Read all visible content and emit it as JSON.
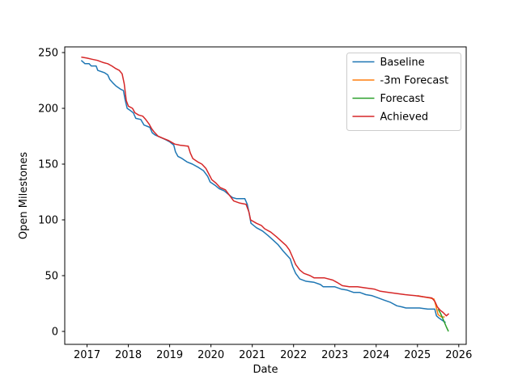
{
  "figure": {
    "background": "#ffffff",
    "kind": "matplotlib-line-chart"
  },
  "chart_data": {
    "type": "line",
    "title": "",
    "xlabel": "Date",
    "ylabel": "Open Milestones",
    "xlim": [
      2016.46,
      2026.18
    ],
    "ylim": [
      -11.6,
      255.1
    ],
    "xticks": [
      2017,
      2018,
      2019,
      2020,
      2021,
      2022,
      2023,
      2024,
      2025,
      2026
    ],
    "yticks": [
      0,
      50,
      100,
      150,
      200,
      250
    ],
    "grid": false,
    "legend": {
      "position": "upper-right",
      "entries": [
        "Baseline",
        "-3m Forecast",
        "Forecast",
        "Achieved"
      ],
      "border_color": "#cccccc",
      "background": "#ffffff"
    },
    "series": [
      {
        "name": "Baseline",
        "color": "#1f77b4",
        "x": [
          2016.86,
          2016.95,
          2017.05,
          2017.1,
          2017.22,
          2017.26,
          2017.42,
          2017.5,
          2017.55,
          2017.62,
          2017.7,
          2017.82,
          2017.88,
          2017.92,
          2017.97,
          2018.05,
          2018.12,
          2018.18,
          2018.3,
          2018.38,
          2018.52,
          2018.58,
          2018.65,
          2018.78,
          2018.9,
          2019.0,
          2019.1,
          2019.14,
          2019.2,
          2019.3,
          2019.42,
          2019.55,
          2019.7,
          2019.82,
          2019.92,
          2019.98,
          2020.1,
          2020.2,
          2020.32,
          2020.42,
          2020.52,
          2020.62,
          2020.82,
          2020.88,
          2020.93,
          2020.97,
          2021.1,
          2021.25,
          2021.38,
          2021.5,
          2021.62,
          2021.75,
          2021.85,
          2021.92,
          2021.98,
          2022.05,
          2022.15,
          2022.3,
          2022.5,
          2022.65,
          2022.72,
          2023.0,
          2023.15,
          2023.3,
          2023.45,
          2023.6,
          2023.75,
          2023.9,
          2024.05,
          2024.2,
          2024.35,
          2024.5,
          2024.62,
          2024.72,
          2025.05,
          2025.25,
          2025.42,
          2025.46,
          2025.52,
          2025.6,
          2025.68
        ],
        "y": [
          243,
          240,
          240,
          238,
          238,
          234,
          232,
          230,
          226,
          223,
          220,
          217,
          216,
          208,
          200,
          198,
          196,
          191,
          190,
          185,
          183,
          178,
          176,
          174,
          172,
          170,
          167,
          161,
          157,
          155,
          152,
          150,
          147,
          144,
          139,
          134,
          131,
          128,
          126,
          123,
          120,
          119,
          119,
          114,
          105,
          97,
          93,
          90,
          86,
          82,
          78,
          72,
          68,
          65,
          58,
          52,
          47,
          45,
          44,
          42,
          40,
          40,
          38,
          37,
          35,
          35,
          33,
          32,
          30,
          28,
          26,
          23,
          22,
          21,
          21,
          20,
          20,
          14,
          12,
          10,
          8
        ]
      },
      {
        "name": "-3m Forecast",
        "color": "#ff7f0e",
        "x": [
          2025.0,
          2025.15,
          2025.3,
          2025.4,
          2025.44,
          2025.5,
          2025.58,
          2025.66
        ],
        "y": [
          32,
          31,
          30,
          29,
          24,
          15,
          13,
          13
        ]
      },
      {
        "name": "Forecast",
        "color": "#2ca02c",
        "x": [
          2025.5,
          2025.56,
          2025.62,
          2025.7,
          2025.75
        ],
        "y": [
          20,
          16,
          11,
          4,
          0
        ]
      },
      {
        "name": "Achieved",
        "color": "#d62728",
        "x": [
          2016.86,
          2017.0,
          2017.12,
          2017.25,
          2017.4,
          2017.5,
          2017.6,
          2017.68,
          2017.78,
          2017.85,
          2017.9,
          2017.95,
          2018.0,
          2018.1,
          2018.16,
          2018.25,
          2018.35,
          2018.42,
          2018.5,
          2018.56,
          2018.62,
          2018.72,
          2018.85,
          2018.98,
          2019.12,
          2019.25,
          2019.45,
          2019.5,
          2019.56,
          2019.68,
          2019.78,
          2019.88,
          2019.95,
          2020.02,
          2020.12,
          2020.22,
          2020.35,
          2020.45,
          2020.55,
          2020.7,
          2020.85,
          2020.92,
          2020.96,
          2021.1,
          2021.22,
          2021.3,
          2021.45,
          2021.58,
          2021.7,
          2021.82,
          2021.9,
          2021.97,
          2022.05,
          2022.15,
          2022.25,
          2022.4,
          2022.5,
          2022.75,
          2022.95,
          2023.05,
          2023.18,
          2023.35,
          2023.55,
          2023.75,
          2023.95,
          2024.1,
          2024.3,
          2024.5,
          2024.7,
          2024.95,
          2025.15,
          2025.35,
          2025.42,
          2025.48,
          2025.55,
          2025.62,
          2025.7,
          2025.76
        ],
        "y": [
          246,
          245,
          244,
          243,
          241,
          240,
          238,
          236,
          234,
          231,
          222,
          207,
          202,
          200,
          196,
          194,
          193,
          190,
          186,
          182,
          179,
          175,
          173,
          171,
          168,
          167,
          166,
          160,
          155,
          152,
          150,
          146,
          141,
          136,
          133,
          129,
          127,
          122,
          117,
          115,
          114,
          107,
          100,
          97,
          95,
          92,
          89,
          85,
          81,
          77,
          73,
          67,
          60,
          55,
          52,
          50,
          48,
          48,
          46,
          44,
          41,
          40,
          40,
          39,
          38,
          36,
          35,
          34,
          33,
          32,
          31,
          30,
          27,
          22,
          19,
          17,
          14,
          16
        ]
      }
    ]
  }
}
